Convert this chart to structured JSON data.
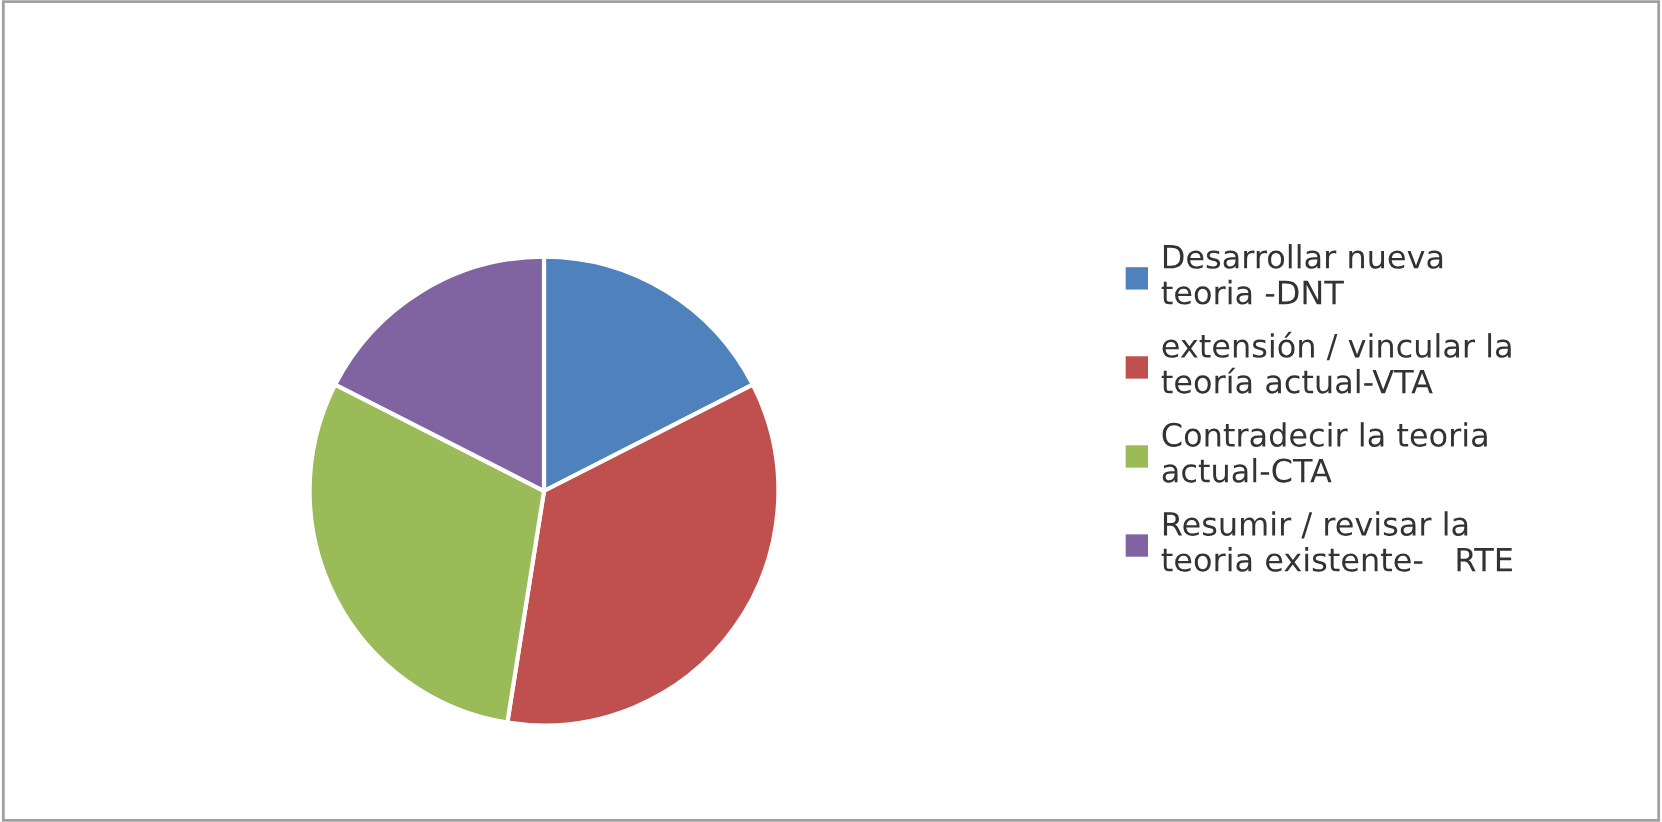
{
  "chart_data": {
    "type": "pie",
    "categories": [
      "Desarrollar nueva\nteoria -DNT",
      "extensión / vincular la\nteoría actual-VTA",
      "Contradecir la teoria\nactual-CTA",
      "Resumir / revisar la\nteoria existente-   RTE"
    ],
    "values": [
      17.5,
      35,
      30,
      17.5
    ],
    "colors": [
      "#4f81bd",
      "#c0504d",
      "#9bbb59",
      "#8064a2"
    ],
    "legend": "right"
  }
}
